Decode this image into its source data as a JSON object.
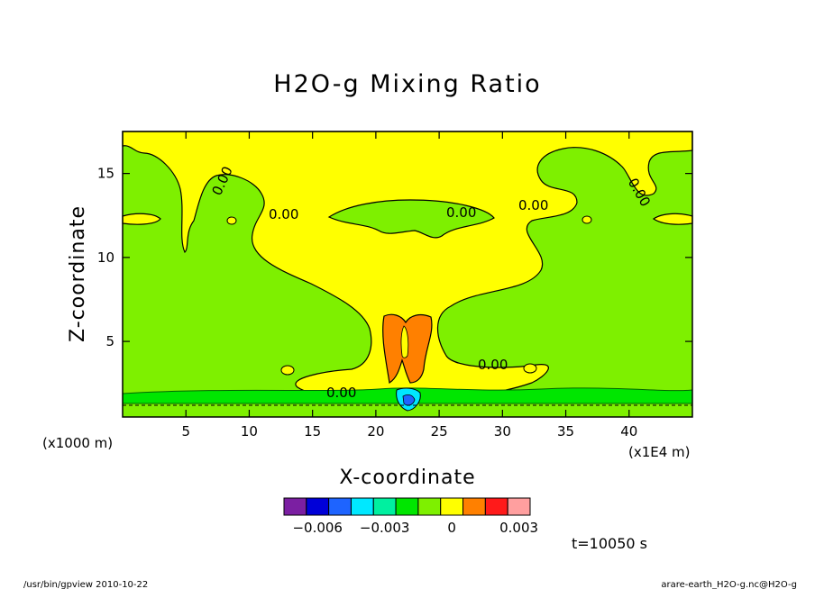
{
  "chart_data": {
    "type": "contour",
    "title": "H2O-g Mixing Ratio",
    "xlabel": "X-coordinate",
    "ylabel": "Z-coordinate",
    "x_unit": "(x1E4 m)",
    "y_unit": "(x1000 m)",
    "xlim": [
      0,
      45
    ],
    "ylim": [
      0.5,
      17.5
    ],
    "x_ticks": [
      5,
      10,
      15,
      20,
      25,
      30,
      35,
      40
    ],
    "y_ticks": [
      5,
      10,
      15
    ],
    "contour_labels": [
      "0.00",
      "0.00",
      "0.00",
      "0.00",
      "0.00",
      "0.00",
      "0.00",
      "0.00"
    ],
    "colorbar": {
      "colors": [
        "#7b1fa2",
        "#0000d8",
        "#1e64ff",
        "#00e8ff",
        "#00f0a0",
        "#00e600",
        "#7ef000",
        "#ffff00",
        "#ff8000",
        "#ff1a1a",
        "#ff9f9f"
      ],
      "labels": [
        "−0.006",
        "−0.003",
        "0",
        "0.003"
      ],
      "label_values": [
        -0.006,
        -0.003,
        0,
        0.003
      ]
    },
    "colors": {
      "positive": "#ffff00",
      "zero": "#7ef000",
      "high": "#ff8000",
      "negative": "#00e600",
      "low": "#00e8ff"
    }
  },
  "time_label": "t=10050 s",
  "footer_left": "/usr/bin/gpview  2010-10-22",
  "footer_right": "arare-earth_H2O-g.nc@H2O-g"
}
